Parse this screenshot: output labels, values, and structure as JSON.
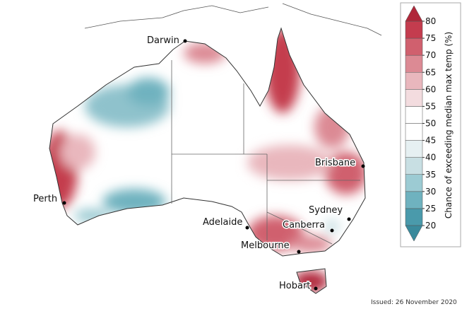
{
  "map": {
    "cities": [
      {
        "label": "Darwin"
      },
      {
        "label": "Perth"
      },
      {
        "label": "Adelaide"
      },
      {
        "label": "Melbourne"
      },
      {
        "label": "Sydney"
      },
      {
        "label": "Canberra"
      },
      {
        "label": "Brisbane"
      },
      {
        "label": "Hobart"
      }
    ],
    "issued": "Issued: 26 November 2020"
  },
  "legend": {
    "title": "Chance of exceeding median max temp (%)",
    "ticks": [
      20,
      25,
      30,
      35,
      40,
      45,
      50,
      55,
      60,
      65,
      70,
      75,
      80
    ],
    "colors": [
      "#4a9aab",
      "#6fb2bf",
      "#9ccbd3",
      "#c8dfe3",
      "#e6f0f2",
      "#ffffff",
      "#ffffff",
      "#f3dcdf",
      "#e9b7bd",
      "#dc8a94",
      "#d0606e",
      "#c43c4e"
    ],
    "below_color": "#3a8a9c",
    "above_color": "#b0283a"
  }
}
